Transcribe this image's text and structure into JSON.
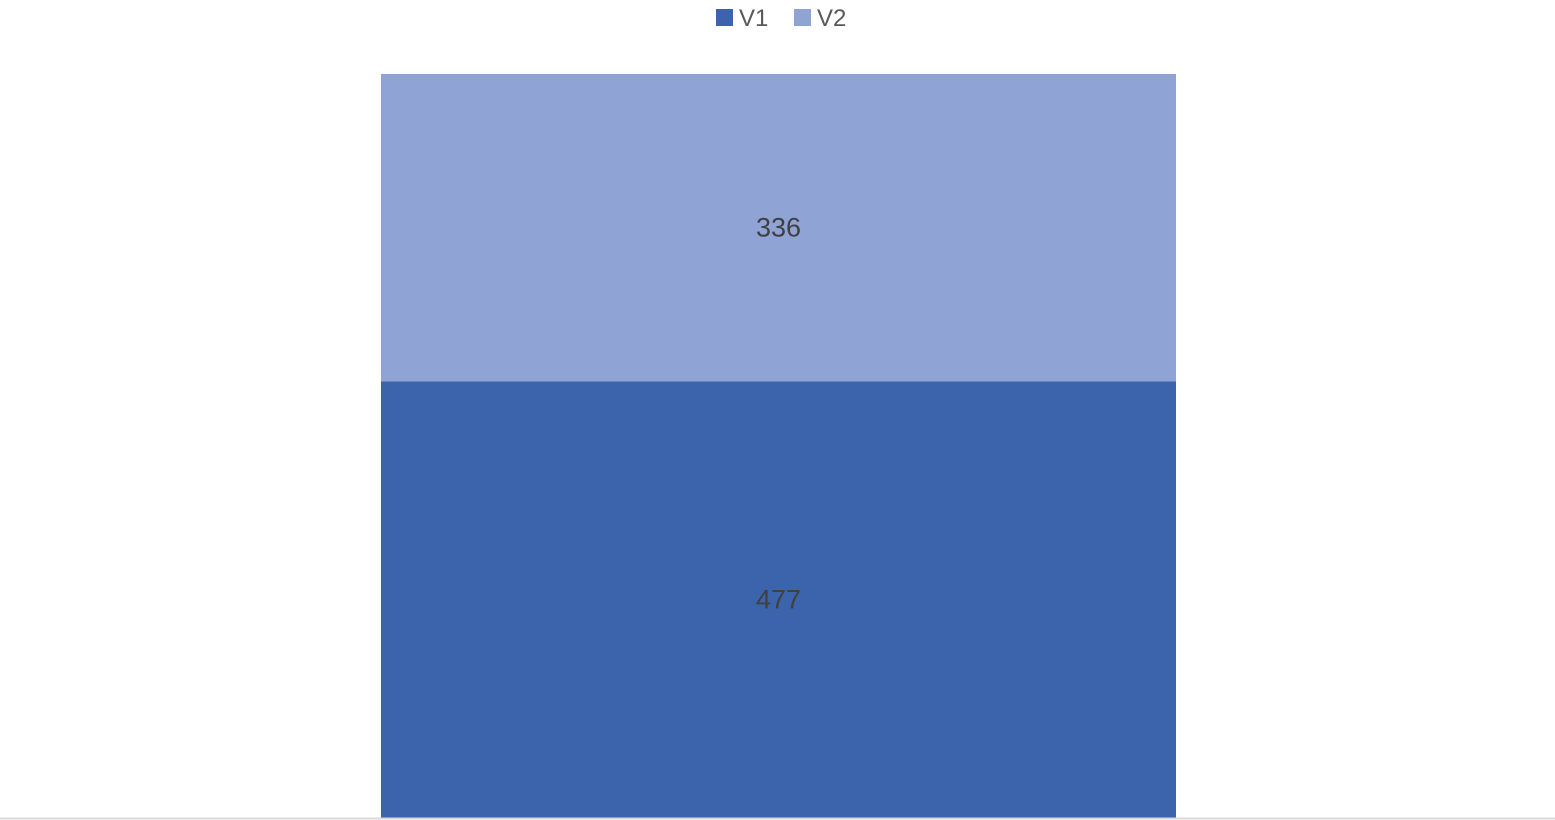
{
  "chart_data": {
    "type": "bar",
    "stacked": true,
    "categories": [
      ""
    ],
    "series": [
      {
        "name": "V1",
        "values": [
          477
        ],
        "color": "#3C64AC"
      },
      {
        "name": "V2",
        "values": [
          336
        ],
        "color": "#8FA3D4"
      }
    ],
    "title": "",
    "xlabel": "",
    "ylabel": "",
    "ylim": [
      0,
      813
    ],
    "grid": false,
    "legend": "top-center",
    "data_labels": true,
    "axis_color": "#D9D9D9"
  }
}
